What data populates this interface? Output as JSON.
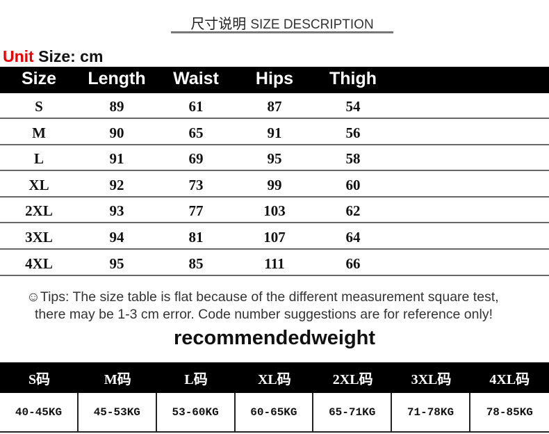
{
  "title": {
    "cn": "尺寸说明",
    "en": "SIZE DESCRIPTION"
  },
  "unit": {
    "red": "Unit",
    "rest": " Size: cm"
  },
  "size_table": {
    "headers": [
      "Size",
      "Length",
      "Waist",
      "Hips",
      "Thigh"
    ],
    "rows": [
      [
        "S",
        "89",
        "61",
        "87",
        "54"
      ],
      [
        "M",
        "90",
        "65",
        "91",
        "56"
      ],
      [
        "L",
        "91",
        "69",
        "95",
        "58"
      ],
      [
        "XL",
        "92",
        "73",
        "99",
        "60"
      ],
      [
        "2XL",
        "93",
        "77",
        "103",
        "62"
      ],
      [
        "3XL",
        "94",
        "81",
        "107",
        "64"
      ],
      [
        "4XL",
        "95",
        "85",
        "111",
        "66"
      ]
    ]
  },
  "tips": {
    "line1": "☺Tips: The size table is flat because of the different measurement square test,",
    "line2": "there may be 1-3 cm error.  Code number suggestions are for reference only!"
  },
  "weight_title": "recommendedweight",
  "weight_table": {
    "headers": [
      "S码",
      "M码",
      "L码",
      "XL码",
      "2XL码",
      "3XL码",
      "4XL码"
    ],
    "values": [
      "40-45KG",
      "45-53KG",
      "53-60KG",
      "60-65KG",
      "65-71KG",
      "71-78KG",
      "78-85KG"
    ]
  }
}
